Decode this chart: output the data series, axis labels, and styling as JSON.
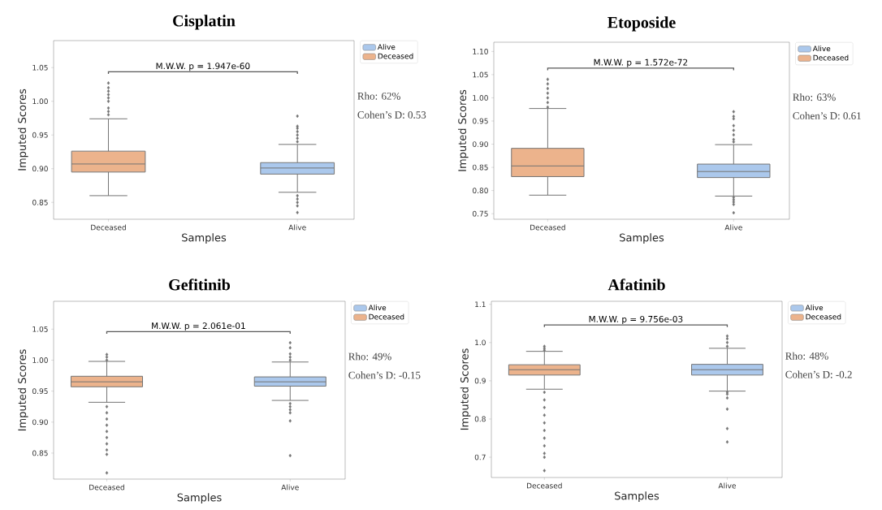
{
  "chart_data": [
    {
      "type": "box",
      "title": "Cisplatin",
      "xlabel": "Samples",
      "ylabel": "Imputed Scores",
      "categories": [
        "Deceased",
        "Alive"
      ],
      "ylim": [
        0.825,
        1.09
      ],
      "yticks": [
        {
          "value": 0.85,
          "label": "0.85"
        },
        {
          "value": 0.9,
          "label": "0.90"
        },
        {
          "value": 0.95,
          "label": "0.95"
        },
        {
          "value": 1.0,
          "label": "1.00"
        },
        {
          "value": 1.05,
          "label": "1.05"
        }
      ],
      "legend": "top right",
      "marker": "diamond",
      "grid": false,
      "annotations": [
        "M.W.W. p = 1.947e-60",
        "Rho: 62%",
        "Cohen’s D: 0.53"
      ],
      "series": [
        {
          "name": "Alive",
          "color": "#abc8ec",
          "boxes": [
            null,
            {
              "low": 0.865,
              "q1": 0.892,
              "median": 0.901,
              "q3": 0.909,
              "high": 0.936,
              "outliers": [
                0.94,
                0.945,
                0.95,
                0.955,
                0.96,
                0.963,
                0.978,
                0.86,
                0.855,
                0.85,
                0.845,
                0.835
              ]
            }
          ]
        },
        {
          "name": "Deceased",
          "color": "#ecb38c",
          "boxes": [
            {
              "low": 0.86,
              "q1": 0.895,
              "median": 0.907,
              "q3": 0.926,
              "high": 0.974,
              "outliers": [
                0.98,
                0.985,
                0.99,
                1.0,
                1.005,
                1.01,
                1.015,
                1.02,
                1.027
              ]
            },
            null
          ]
        }
      ]
    },
    {
      "type": "box",
      "title": "Etoposide",
      "xlabel": "Samples",
      "ylabel": "Imputed Scores",
      "categories": [
        "Deceased",
        "Alive"
      ],
      "ylim": [
        0.738,
        1.12
      ],
      "yticks": [
        {
          "value": 0.75,
          "label": "0.75"
        },
        {
          "value": 0.8,
          "label": "0.80"
        },
        {
          "value": 0.85,
          "label": "0.85"
        },
        {
          "value": 0.9,
          "label": "0.90"
        },
        {
          "value": 0.95,
          "label": "0.95"
        },
        {
          "value": 1.0,
          "label": "1.00"
        },
        {
          "value": 1.05,
          "label": "1.05"
        },
        {
          "value": 1.1,
          "label": "1.10"
        }
      ],
      "legend": "top right",
      "marker": "diamond",
      "grid": false,
      "annotations": [
        "M.W.W. p = 1.572e-72",
        "Rho: 63%",
        "Cohen’s D: 0.61"
      ],
      "series": [
        {
          "name": "Alive",
          "color": "#abc8ec",
          "boxes": [
            null,
            {
              "low": 0.788,
              "q1": 0.828,
              "median": 0.841,
              "q3": 0.857,
              "high": 0.899,
              "outliers": [
                0.905,
                0.91,
                0.92,
                0.93,
                0.94,
                0.955,
                0.96,
                0.97,
                0.785,
                0.78,
                0.775,
                0.77,
                0.752
              ]
            }
          ]
        },
        {
          "name": "Deceased",
          "color": "#ecb38c",
          "boxes": [
            {
              "low": 0.79,
              "q1": 0.83,
              "median": 0.853,
              "q3": 0.891,
              "high": 0.977,
              "outliers": [
                0.98,
                0.99,
                1.0,
                1.01,
                1.02,
                1.03,
                1.04
              ]
            },
            null
          ]
        }
      ]
    },
    {
      "type": "box",
      "title": "Gefitinib",
      "xlabel": "Samples",
      "ylabel": "Imputed Scores",
      "categories": [
        "Deceased",
        "Alive"
      ],
      "ylim": [
        0.808,
        1.095
      ],
      "yticks": [
        {
          "value": 0.85,
          "label": "0.85"
        },
        {
          "value": 0.9,
          "label": "0.90"
        },
        {
          "value": 0.95,
          "label": "0.95"
        },
        {
          "value": 1.0,
          "label": "1.00"
        },
        {
          "value": 1.05,
          "label": "1.05"
        }
      ],
      "legend": "top right",
      "marker": "diamond",
      "grid": false,
      "annotations": [
        "M.W.W. p = 2.061e-01",
        "Rho: 49%",
        "Cohen’s D: -0.15"
      ],
      "series": [
        {
          "name": "Alive",
          "color": "#abc8ec",
          "boxes": [
            null,
            {
              "low": 0.935,
              "q1": 0.958,
              "median": 0.965,
              "q3": 0.973,
              "high": 0.997,
              "outliers": [
                1.0,
                1.005,
                1.01,
                1.02,
                1.028,
                0.93,
                0.925,
                0.92,
                0.915,
                0.902,
                0.846
              ]
            }
          ]
        },
        {
          "name": "Deceased",
          "color": "#ecb38c",
          "boxes": [
            {
              "low": 0.932,
              "q1": 0.957,
              "median": 0.965,
              "q3": 0.974,
              "high": 0.998,
              "outliers": [
                1.0,
                1.005,
                1.009,
                0.925,
                0.915,
                0.905,
                0.895,
                0.885,
                0.875,
                0.865,
                0.855,
                0.848,
                0.818
              ]
            },
            null
          ]
        }
      ]
    },
    {
      "type": "box",
      "title": "Afatinib",
      "xlabel": "Samples",
      "ylabel": "Imputed Scores",
      "categories": [
        "Deceased",
        "Alive"
      ],
      "ylim": [
        0.647,
        1.108
      ],
      "yticks": [
        {
          "value": 0.7,
          "label": "0.7"
        },
        {
          "value": 0.8,
          "label": "0.8"
        },
        {
          "value": 0.9,
          "label": "0.9"
        },
        {
          "value": 1.0,
          "label": "1.0"
        },
        {
          "value": 1.1,
          "label": "1.1"
        }
      ],
      "legend": "top right",
      "marker": "diamond",
      "grid": false,
      "annotations": [
        "M.W.W. p = 9.756e-03",
        "Rho: 48%",
        "Cohen’s D: -0.2"
      ],
      "series": [
        {
          "name": "Alive",
          "color": "#abc8ec",
          "boxes": [
            null,
            {
              "low": 0.873,
              "q1": 0.915,
              "median": 0.929,
              "q3": 0.943,
              "high": 0.985,
              "outliers": [
                0.99,
                1.0,
                1.01,
                1.017,
                0.87,
                0.865,
                0.855,
                0.826,
                0.775,
                0.74
              ]
            }
          ]
        },
        {
          "name": "Deceased",
          "color": "#ecb38c",
          "boxes": [
            {
              "low": 0.878,
              "q1": 0.915,
              "median": 0.929,
              "q3": 0.942,
              "high": 0.977,
              "outliers": [
                0.98,
                0.985,
                0.99,
                0.87,
                0.85,
                0.83,
                0.81,
                0.79,
                0.77,
                0.75,
                0.73,
                0.71,
                0.7,
                0.665
              ]
            },
            null
          ]
        }
      ]
    }
  ]
}
